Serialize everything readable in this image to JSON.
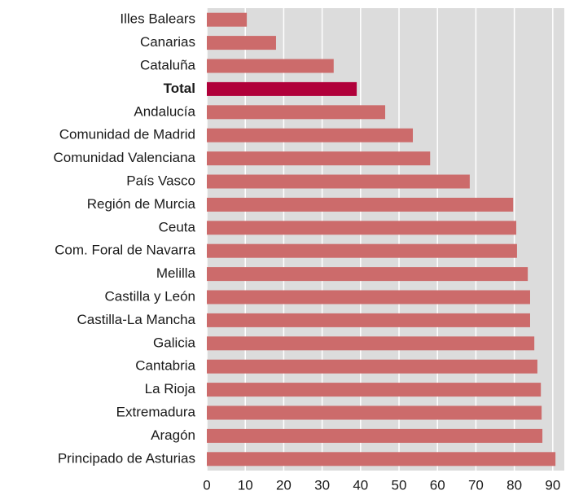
{
  "chart_data": {
    "type": "hbar",
    "categories": [
      "Illes Balears",
      "Canarias",
      "Cataluña",
      "Total",
      "Andalucía",
      "Comunidad de Madrid",
      "Comunidad Valenciana",
      "País Vasco",
      "Región de Murcia",
      "Ceuta",
      "Com. Foral de Navarra",
      "Melilla",
      "Castilla y León",
      "Castilla-La Mancha",
      "Galicia",
      "Cantabria",
      "La Rioja",
      "Extremadura",
      "Aragón",
      "Principado de Asturias"
    ],
    "values": [
      10.4,
      18.0,
      33.0,
      39.0,
      46.4,
      53.6,
      58.1,
      68.4,
      79.7,
      80.5,
      80.7,
      83.5,
      84.1,
      84.1,
      85.2,
      86.0,
      86.9,
      87.1,
      87.3,
      90.7
    ],
    "color": "#cc6b6b",
    "colors": [
      "#cc6b6b",
      "#cc6b6b",
      "#cc6b6b",
      "#b0003a",
      "#cc6b6b",
      "#cc6b6b",
      "#cc6b6b",
      "#cc6b6b",
      "#cc6b6b",
      "#cc6b6b",
      "#cc6b6b",
      "#cc6b6b",
      "#cc6b6b",
      "#cc6b6b",
      "#cc6b6b",
      "#cc6b6b",
      "#cc6b6b",
      "#cc6b6b",
      "#cc6b6b",
      "#cc6b6b"
    ],
    "xlim": [
      0,
      93
    ],
    "xticks": [
      0,
      10,
      20,
      30,
      40,
      50,
      60,
      70,
      80,
      90
    ],
    "grid": true
  }
}
